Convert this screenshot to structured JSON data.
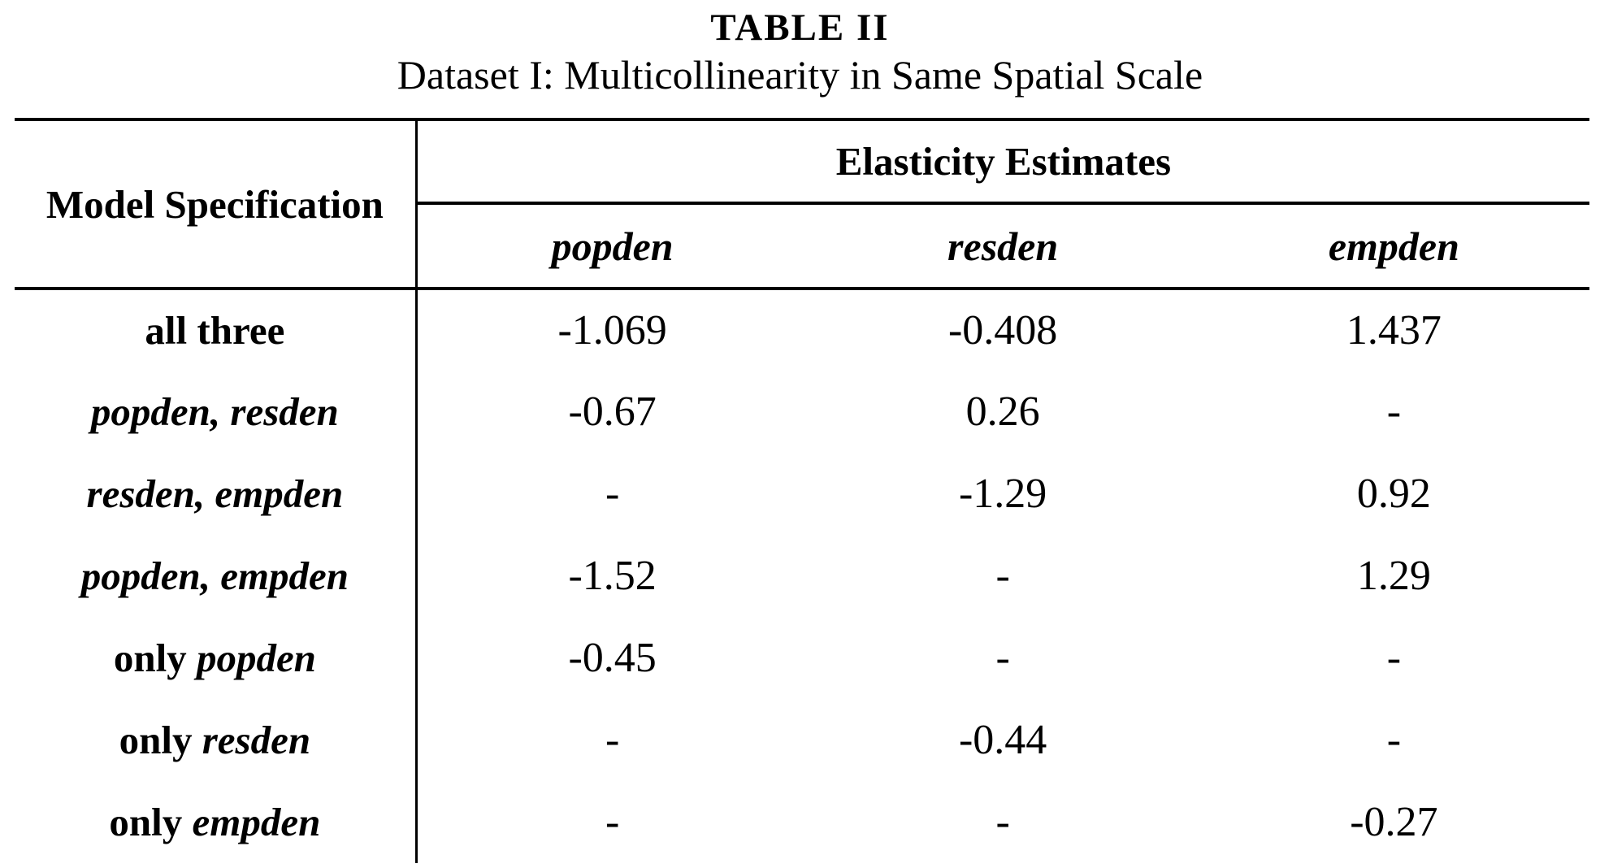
{
  "caption": {
    "title": "TABLE II",
    "subtitle": "Dataset I: Multicollinearity in Same Spatial Scale"
  },
  "table": {
    "corner_header": "Model Specification",
    "group_header": "Elasticity Estimates",
    "columns": [
      "popden",
      "resden",
      "empden"
    ],
    "missing_marker": "-",
    "rows": [
      {
        "label_parts": [
          {
            "text": "all three",
            "italic": false
          }
        ],
        "values": [
          "-1.069",
          "-0.408",
          "1.437"
        ]
      },
      {
        "label_parts": [
          {
            "text": "popden, resden",
            "italic": true
          }
        ],
        "values": [
          "-0.67",
          "0.26",
          "-"
        ]
      },
      {
        "label_parts": [
          {
            "text": "resden, empden",
            "italic": true
          }
        ],
        "values": [
          "-",
          "-1.29",
          "0.92"
        ]
      },
      {
        "label_parts": [
          {
            "text": "popden, empden",
            "italic": true
          }
        ],
        "values": [
          "-1.52",
          "-",
          "1.29"
        ]
      },
      {
        "label_parts": [
          {
            "text": "only ",
            "italic": false
          },
          {
            "text": "popden",
            "italic": true
          }
        ],
        "values": [
          "-0.45",
          "-",
          "-"
        ]
      },
      {
        "label_parts": [
          {
            "text": "only ",
            "italic": false
          },
          {
            "text": "resden",
            "italic": true
          }
        ],
        "values": [
          "-",
          "-0.44",
          "-"
        ]
      },
      {
        "label_parts": [
          {
            "text": "only ",
            "italic": false
          },
          {
            "text": "empden",
            "italic": true
          }
        ],
        "values": [
          "-",
          "-",
          "-0.27"
        ]
      }
    ]
  },
  "style": {
    "text_color": "#000000",
    "background_color": "#ffffff",
    "rule_color": "#000000"
  }
}
